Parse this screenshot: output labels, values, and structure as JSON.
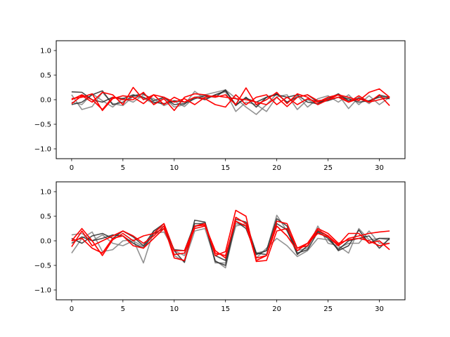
{
  "colors": {
    "gray": "#7f7f7f",
    "dark": "#2b2b2b",
    "red": "#ff0000"
  },
  "chart_data": [
    {
      "type": "line",
      "title": "",
      "xlabel": "",
      "ylabel": "",
      "xlim": [
        -1.5,
        32.5
      ],
      "ylim": [
        -1.2,
        1.2
      ],
      "x_ticks": [
        0,
        5,
        10,
        15,
        20,
        25,
        30
      ],
      "y_ticks": [
        -1.0,
        -0.5,
        0.0,
        0.5,
        1.0
      ],
      "x_tick_labels": [
        "0",
        "5",
        "10",
        "15",
        "20",
        "25",
        "30"
      ],
      "y_tick_labels": [
        "−1.0",
        "−0.5",
        "0.0",
        "0.5",
        "1.0"
      ],
      "x": [
        0,
        1,
        2,
        3,
        4,
        5,
        6,
        7,
        8,
        9,
        10,
        11,
        12,
        13,
        14,
        15,
        16,
        17,
        18,
        19,
        20,
        21,
        22,
        23,
        24,
        25,
        26,
        27,
        28,
        29,
        30,
        31
      ],
      "series": [
        {
          "color": "gray",
          "values": [
            0.1,
            -0.2,
            -0.14,
            0.15,
            -0.08,
            -0.12,
            0.07,
            0.03,
            -0.08,
            0.05,
            -0.15,
            -0.1,
            0.17,
            0.02,
            0.1,
            0.16,
            -0.24,
            -0.05,
            -0.1,
            -0.24,
            0.06,
            0.1,
            -0.2,
            0.0,
            -0.1,
            0.05,
            0.1,
            -0.18,
            0.05,
            -0.08,
            0.1,
            0.05
          ]
        },
        {
          "color": "gray",
          "values": [
            -0.05,
            -0.1,
            0.12,
            -0.02,
            -0.15,
            0.03,
            -0.05,
            0.1,
            0.02,
            -0.12,
            -0.03,
            -0.14,
            0.05,
            0.1,
            0.15,
            0.2,
            0.03,
            -0.15,
            -0.3,
            -0.1,
            0.12,
            -0.05,
            0.08,
            -0.15,
            0.02,
            0.08,
            -0.05,
            0.1,
            -0.1,
            0.08,
            -0.1,
            0.05
          ]
        },
        {
          "color": "dark",
          "values": [
            0.16,
            0.15,
            0.0,
            -0.05,
            0.05,
            0.02,
            0.1,
            0.05,
            -0.05,
            -0.08,
            -0.02,
            -0.05,
            0.05,
            0.0,
            0.1,
            0.18,
            -0.1,
            0.03,
            -0.05,
            0.05,
            0.1,
            0.05,
            0.1,
            -0.05,
            -0.08,
            0.02,
            0.12,
            -0.02,
            0.03,
            -0.03,
            0.08,
            0.05
          ]
        },
        {
          "color": "dark",
          "values": [
            -0.1,
            -0.05,
            0.1,
            0.18,
            -0.1,
            -0.05,
            0.08,
            0.12,
            -0.02,
            0.05,
            -0.1,
            -0.08,
            0.02,
            0.08,
            0.05,
            0.2,
            -0.12,
            0.05,
            -0.15,
            0.05,
            0.12,
            -0.05,
            0.05,
            0.1,
            -0.05,
            -0.02,
            0.05,
            0.02,
            -0.05,
            -0.02,
            0.05,
            0.02
          ]
        },
        {
          "color": "red",
          "values": [
            0.0,
            0.1,
            0.0,
            -0.2,
            0.05,
            0.0,
            0.0,
            0.15,
            -0.1,
            0.02,
            -0.22,
            0.05,
            0.12,
            0.1,
            0.05,
            0.1,
            -0.1,
            0.24,
            -0.1,
            0.0,
            0.15,
            -0.08,
            0.12,
            0.05,
            -0.1,
            0.0,
            0.05,
            -0.05,
            0.08,
            -0.05,
            0.0,
            0.05
          ]
        },
        {
          "color": "red",
          "values": [
            -0.08,
            0.08,
            -0.05,
            0.15,
            0.1,
            -0.1,
            0.25,
            0.0,
            0.1,
            -0.1,
            0.05,
            -0.05,
            0.05,
            0.02,
            -0.1,
            -0.15,
            0.1,
            -0.1,
            0.05,
            0.1,
            -0.1,
            0.05,
            -0.1,
            0.02,
            -0.05,
            0.05,
            0.1,
            0.05,
            -0.02,
            0.15,
            0.22,
            0.05
          ]
        },
        {
          "color": "red",
          "values": [
            0.02,
            0.05,
            0.12,
            -0.22,
            0.02,
            0.08,
            0.05,
            -0.08,
            0.1,
            0.05,
            -0.05,
            0.02,
            -0.1,
            0.05,
            0.08,
            0.05,
            0.02,
            0.0,
            -0.05,
            -0.1,
            0.05,
            -0.14,
            0.05,
            0.1,
            -0.02,
            0.0,
            0.1,
            -0.05,
            0.02,
            -0.05,
            0.1,
            -0.12
          ]
        }
      ]
    },
    {
      "type": "line",
      "title": "",
      "xlabel": "",
      "ylabel": "",
      "xlim": [
        -1.5,
        32.5
      ],
      "ylim": [
        -1.2,
        1.2
      ],
      "x_ticks": [
        0,
        5,
        10,
        15,
        20,
        25,
        30
      ],
      "y_ticks": [
        -1.0,
        -0.5,
        0.0,
        0.5,
        1.0
      ],
      "x_tick_labels": [
        "0",
        "5",
        "10",
        "15",
        "20",
        "25",
        "30"
      ],
      "y_tick_labels": [
        "−1.0",
        "−0.5",
        "0.0",
        "0.5",
        "1.0"
      ],
      "x": [
        0,
        1,
        2,
        3,
        4,
        5,
        6,
        7,
        8,
        9,
        10,
        11,
        12,
        13,
        14,
        15,
        16,
        17,
        18,
        19,
        20,
        21,
        22,
        23,
        24,
        25,
        26,
        27,
        28,
        29,
        30,
        31
      ],
      "series": [
        {
          "color": "gray",
          "values": [
            -0.25,
            0.05,
            0.18,
            -0.22,
            -0.18,
            0.0,
            0.02,
            -0.45,
            0.2,
            0.3,
            -0.3,
            -0.42,
            0.2,
            0.25,
            -0.4,
            -0.55,
            0.35,
            0.3,
            -0.25,
            -0.2,
            0.52,
            0.2,
            -0.2,
            -0.15,
            0.3,
            -0.05,
            -0.1,
            -0.25,
            0.25,
            0.02,
            0.05,
            0.02
          ]
        },
        {
          "color": "gray",
          "values": [
            0.12,
            0.15,
            0.0,
            0.12,
            -0.05,
            -0.1,
            0.0,
            -0.12,
            0.15,
            0.18,
            -0.2,
            -0.3,
            0.28,
            0.38,
            -0.45,
            -0.45,
            0.3,
            0.35,
            -0.35,
            -0.15,
            0.05,
            -0.1,
            -0.32,
            -0.2,
            0.05,
            0.02,
            -0.15,
            -0.05,
            -0.05,
            0.2,
            -0.05,
            -0.05
          ]
        },
        {
          "color": "dark",
          "values": [
            0.05,
            -0.05,
            0.1,
            0.15,
            0.05,
            0.2,
            0.08,
            -0.1,
            0.2,
            0.35,
            -0.2,
            -0.44,
            0.42,
            0.38,
            -0.3,
            -0.4,
            0.44,
            0.38,
            -0.25,
            -0.28,
            0.35,
            0.22,
            -0.28,
            -0.1,
            0.2,
            0.1,
            -0.2,
            -0.1,
            0.22,
            -0.05,
            0.05,
            0.05
          ]
        },
        {
          "color": "dark",
          "values": [
            -0.05,
            0.08,
            0.0,
            0.05,
            0.12,
            0.1,
            -0.05,
            -0.15,
            0.15,
            0.25,
            -0.18,
            -0.2,
            0.35,
            0.35,
            -0.42,
            -0.5,
            0.4,
            0.25,
            -0.28,
            -0.2,
            0.45,
            0.3,
            -0.25,
            -0.18,
            0.18,
            0.05,
            -0.18,
            0.0,
            0.05,
            0.1,
            -0.15,
            0.05
          ]
        },
        {
          "color": "red",
          "values": [
            0.0,
            0.25,
            0.0,
            -0.3,
            0.02,
            0.15,
            0.0,
            0.1,
            0.15,
            0.35,
            -0.2,
            -0.2,
            0.3,
            0.35,
            -0.3,
            -0.22,
            0.62,
            0.5,
            -0.42,
            -0.4,
            0.2,
            0.25,
            -0.15,
            -0.1,
            0.22,
            0.1,
            -0.08,
            0.15,
            0.15,
            -0.05,
            0.0,
            -0.18
          ]
        },
        {
          "color": "red",
          "values": [
            -0.12,
            0.2,
            -0.1,
            0.0,
            0.1,
            0.2,
            0.1,
            -0.05,
            0.1,
            0.3,
            -0.35,
            -0.4,
            0.3,
            0.32,
            -0.2,
            -0.35,
            0.48,
            0.35,
            -0.4,
            -0.3,
            0.4,
            0.35,
            -0.15,
            -0.05,
            0.25,
            0.15,
            -0.05,
            0.02,
            0.05,
            0.0,
            -0.1,
            -0.05
          ]
        },
        {
          "color": "red",
          "values": [
            0.0,
            0.05,
            -0.15,
            -0.25,
            0.05,
            0.1,
            -0.1,
            -0.15,
            0.05,
            0.25,
            -0.28,
            -0.25,
            0.25,
            0.3,
            -0.25,
            -0.3,
            0.4,
            0.3,
            -0.35,
            -0.3,
            0.3,
            0.1,
            -0.2,
            -0.05,
            0.15,
            0.08,
            -0.1,
            0.05,
            0.1,
            0.15,
            0.18,
            0.2
          ]
        }
      ]
    }
  ]
}
